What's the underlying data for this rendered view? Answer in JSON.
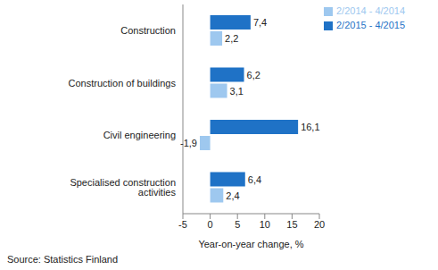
{
  "chart_data": {
    "type": "bar",
    "orientation": "horizontal",
    "categories": [
      "Construction",
      "Construction of buildings",
      "Civil engineering",
      "Specialised construction activities"
    ],
    "series": [
      {
        "name": "2/2015 - 4/2015",
        "color": "#1f72c6",
        "values": [
          7.4,
          6.2,
          16.1,
          6.4
        ],
        "value_labels": [
          "7,4",
          "6,2",
          "16,1",
          "6,4"
        ]
      },
      {
        "name": "2/2014 - 4/2014",
        "color": "#9ec8ef",
        "values": [
          2.2,
          3.1,
          -1.9,
          2.4
        ],
        "value_labels": [
          "2,2",
          "3,1",
          "-1,9",
          "2,4"
        ]
      }
    ],
    "x_label": "Year-on-year change, %",
    "xlim": [
      -5,
      20
    ],
    "xticks": [
      -5,
      0,
      5,
      10,
      15,
      20
    ],
    "grid": false,
    "legend": "top-right",
    "data_labels": true,
    "annotations": [
      "Source: Statistics Finland"
    ]
  }
}
